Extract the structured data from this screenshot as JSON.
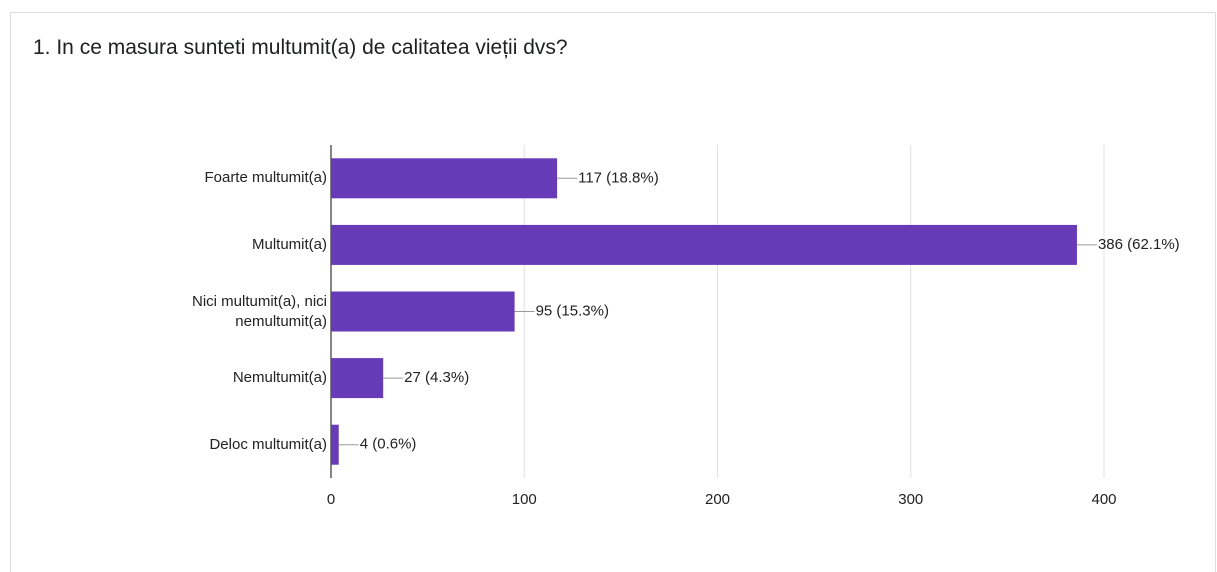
{
  "chart_data": {
    "type": "bar",
    "orientation": "horizontal",
    "title": "1. In ce masura sunteti multumit(a) de calitatea vieții dvs?",
    "categories": [
      "Foarte multumit(a)",
      "Multumit(a)",
      "Nici multumit(a), nici nemultumit(a)",
      "Nemultumit(a)",
      "Deloc multumit(a)"
    ],
    "values": [
      117,
      386,
      95,
      27,
      4
    ],
    "value_labels": [
      "117 (18.8%)",
      "386 (62.1%)",
      "95 (15.3%)",
      "27 (4.3%)",
      "4 (0.6%)"
    ],
    "color": "#673ab7",
    "xlim": [
      0,
      400
    ],
    "xticks": [
      0,
      100,
      200,
      300,
      400
    ],
    "grid": true
  }
}
